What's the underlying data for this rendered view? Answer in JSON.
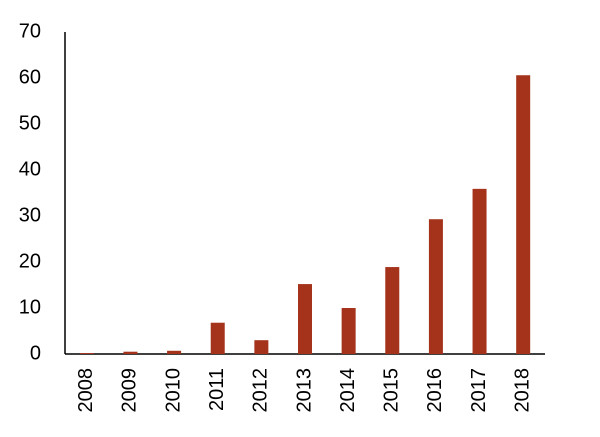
{
  "chart_data": {
    "type": "bar",
    "categories": [
      "2008",
      "2009",
      "2010",
      "2011",
      "2012",
      "2013",
      "2014",
      "2015",
      "2016",
      "2017",
      "2018"
    ],
    "values": [
      0.2,
      0.5,
      0.7,
      6.8,
      3.0,
      15.2,
      10.0,
      18.9,
      29.3,
      35.9,
      60.6
    ],
    "color": "#a5321a",
    "ylim": [
      0,
      70
    ],
    "yticks": [
      0,
      10,
      20,
      30,
      40,
      50,
      60,
      70
    ],
    "grid": false
  }
}
